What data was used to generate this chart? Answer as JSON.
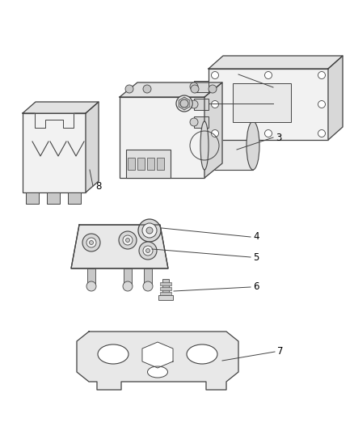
{
  "background_color": "#ffffff",
  "figsize": [
    4.38,
    5.33
  ],
  "dpi": 100,
  "line_color": "#444444",
  "label_color": "#000000",
  "part_fill": "#f2f2f2",
  "part_edge": "#444444",
  "shadow_fill": "#d8d8d8",
  "dark_fill": "#c8c8c8"
}
